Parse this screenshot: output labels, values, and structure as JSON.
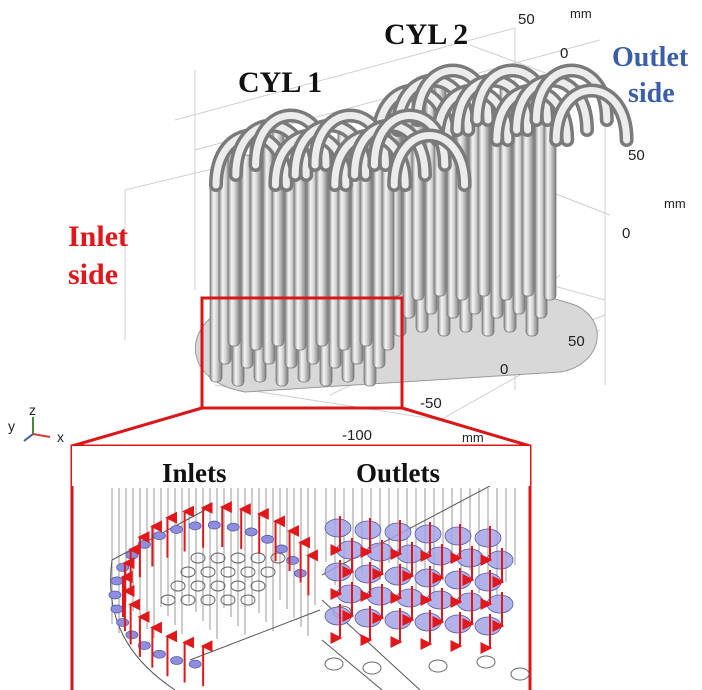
{
  "labels": {
    "cyl1": "CYL 1",
    "cyl2": "CYL 2",
    "outlet_side_line1": "Outlet",
    "outlet_side_line2": "side",
    "inlet_side_line1": "Inlet",
    "inlet_side_line2": "side",
    "inlets": "Inlets",
    "outlets": "Outlets"
  },
  "axes": {
    "z_top_ticks": [
      "50",
      "0"
    ],
    "z_top_unit": "mm",
    "z_right_ticks": [
      "50",
      "0"
    ],
    "z_right_unit": "mm",
    "y_ticks": [
      "50",
      "0",
      "-50"
    ],
    "x_ticks": [
      "-100"
    ],
    "x_unit": "mm"
  },
  "triad": {
    "y": "y",
    "z": "z",
    "x": "x"
  },
  "colors": {
    "inlet_label": "#e0181b",
    "outlet_label": "#3a5fa8",
    "zoom_frame": "#d9161a",
    "arrow": "#e0181b",
    "port_fill": "#8e8ee0"
  }
}
